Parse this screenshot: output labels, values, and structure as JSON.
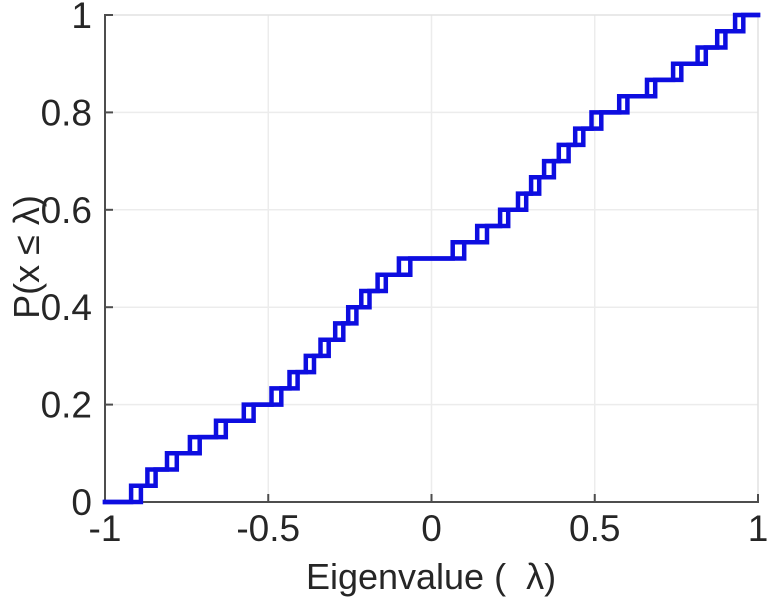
{
  "figure": {
    "background": "#ffffff"
  },
  "chart_data": {
    "type": "step",
    "subtype": "empirical-cdf-staircase",
    "title": "",
    "xlabel": "Eigenvalue (  λ)",
    "ylabel": "P(x ≤ λ)",
    "xlim": [
      -1,
      1
    ],
    "ylim": [
      0,
      1
    ],
    "grid": true,
    "legend_position": "none",
    "xticks": {
      "values": [
        -1,
        -0.5,
        0,
        0.5,
        1
      ],
      "labels": [
        "-1",
        "-0.5",
        "0",
        "0.5",
        "1"
      ]
    },
    "yticks": {
      "values": [
        0,
        0.2,
        0.4,
        0.6,
        0.8,
        1
      ],
      "labels": [
        "0",
        "0.2",
        "0.4",
        "0.6",
        "0.8",
        "1"
      ]
    },
    "colors": {
      "line": "#0d0de0",
      "axis": "#4d4d4d",
      "box_light": "#e2e2e2",
      "grid": "#ececec",
      "text": "#262626"
    },
    "step_height": 0.03333,
    "series": [
      {
        "name": "ecdf-curve-1",
        "color": "#0d0de0",
        "start": [
          -1,
          0
        ],
        "end": [
          1,
          1
        ],
        "eigenvalues": [
          -0.92,
          -0.87,
          -0.81,
          -0.74,
          -0.66,
          -0.575,
          -0.49,
          -0.435,
          -0.385,
          -0.34,
          -0.295,
          -0.255,
          -0.215,
          -0.165,
          -0.1,
          0.065,
          0.14,
          0.21,
          0.265,
          0.305,
          0.345,
          0.39,
          0.44,
          0.49,
          0.575,
          0.66,
          0.74,
          0.815,
          0.875,
          0.93
        ]
      },
      {
        "name": "ecdf-curve-2",
        "color": "#0d0de0",
        "start": [
          -1,
          0
        ],
        "end": [
          1,
          1
        ],
        "eigenvalues": [
          -0.89,
          -0.845,
          -0.78,
          -0.71,
          -0.63,
          -0.545,
          -0.46,
          -0.41,
          -0.36,
          -0.315,
          -0.27,
          -0.23,
          -0.19,
          -0.14,
          -0.065,
          0.1,
          0.17,
          0.235,
          0.29,
          0.33,
          0.375,
          0.42,
          0.465,
          0.52,
          0.6,
          0.685,
          0.765,
          0.84,
          0.9,
          0.955
        ]
      }
    ]
  }
}
